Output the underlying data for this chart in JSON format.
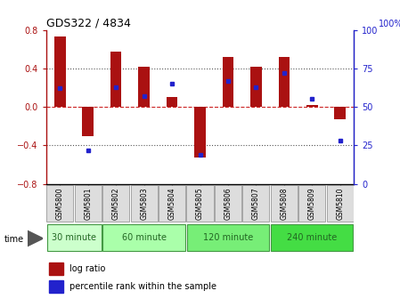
{
  "title": "GDS322 / 4834",
  "samples": [
    "GSM5800",
    "GSM5801",
    "GSM5802",
    "GSM5803",
    "GSM5804",
    "GSM5805",
    "GSM5806",
    "GSM5807",
    "GSM5808",
    "GSM5809",
    "GSM5810"
  ],
  "log_ratio": [
    0.73,
    -0.3,
    0.57,
    0.42,
    0.1,
    -0.53,
    0.52,
    0.42,
    0.52,
    0.02,
    -0.13
  ],
  "percentile": [
    62,
    22,
    63,
    57,
    65,
    19,
    67,
    63,
    72,
    55,
    28
  ],
  "bar_color": "#aa1111",
  "dot_color": "#2222cc",
  "ylim_left": [
    -0.8,
    0.8
  ],
  "ylim_right": [
    0,
    100
  ],
  "yticks_left": [
    -0.8,
    -0.4,
    0,
    0.4,
    0.8
  ],
  "yticks_right": [
    0,
    25,
    50,
    75,
    100
  ],
  "groups": [
    {
      "label": "30 minute",
      "start": 0,
      "end": 2
    },
    {
      "label": "60 minute",
      "start": 2,
      "end": 5
    },
    {
      "label": "120 minute",
      "start": 5,
      "end": 8
    },
    {
      "label": "240 minute",
      "start": 8,
      "end": 11
    }
  ],
  "group_colors": [
    "#ccffcc",
    "#aaffaa",
    "#77ee77",
    "#44dd44"
  ],
  "group_text_color": "#226622",
  "group_edge_color": "#449944",
  "time_label": "time",
  "legend_log_ratio": "log ratio",
  "legend_percentile": "percentile rank within the sample",
  "hline_color": "#cc2222",
  "grid_color": "#555555",
  "bar_width": 0.4,
  "sample_box_color": "#dddddd",
  "sample_box_edge": "#888888",
  "right_label": "100%"
}
